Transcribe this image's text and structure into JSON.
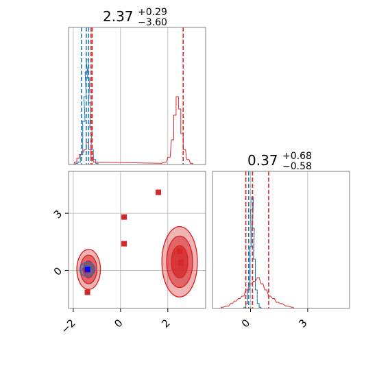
{
  "colors": {
    "red": "#d62728",
    "blue": "#1f77b4",
    "grid": "#b0b0b0",
    "frame": "#808080"
  },
  "chart_data": {
    "type": "corner",
    "grid": true,
    "panels": [
      {
        "id": "hist-x",
        "type": "histogram",
        "title": {
          "value": "2.37",
          "upper": "+0.29",
          "lower": "−3.60"
        },
        "xlim": [
          -2.2,
          3.6
        ],
        "series": [
          {
            "color": "blue",
            "bins": [
              [
                -1.85,
                0.01
              ],
              [
                -1.75,
                0.02
              ],
              [
                -1.65,
                0.08
              ],
              [
                -1.55,
                0.35
              ],
              [
                -1.5,
                0.55
              ],
              [
                -1.45,
                0.75
              ],
              [
                -1.4,
                0.85
              ],
              [
                -1.35,
                0.7
              ],
              [
                -1.3,
                0.5
              ],
              [
                -1.25,
                0.3
              ],
              [
                -1.2,
                0.12
              ],
              [
                -1.1,
                0.04
              ],
              [
                -1.0,
                0.01
              ]
            ]
          },
          {
            "color": "red",
            "bins": [
              [
                -1.9,
                0.02
              ],
              [
                -1.8,
                0.05
              ],
              [
                -1.7,
                0.08
              ],
              [
                -1.6,
                0.1
              ],
              [
                -1.5,
                0.12
              ],
              [
                -1.4,
                0.18
              ],
              [
                -1.3,
                0.12
              ],
              [
                -1.2,
                0.06
              ],
              [
                -1.1,
                0.02
              ],
              [
                1.7,
                0.01
              ],
              [
                1.9,
                0.02
              ],
              [
                2.05,
                0.06
              ],
              [
                2.2,
                0.2
              ],
              [
                2.3,
                0.4
              ],
              [
                2.4,
                0.55
              ],
              [
                2.5,
                0.45
              ],
              [
                2.6,
                0.25
              ],
              [
                2.7,
                0.12
              ],
              [
                2.85,
                0.04
              ],
              [
                3.0,
                0.01
              ]
            ]
          }
        ],
        "vlines": [
          {
            "color": "blue",
            "x": [
              -1.65,
              -1.45,
              -1.35
            ]
          },
          {
            "color": "red",
            "x": [
              -1.25,
              -1.2,
              2.65
            ]
          }
        ]
      },
      {
        "id": "scatter-xy",
        "type": "contour-scatter",
        "xlim": [
          -2.2,
          3.6
        ],
        "ylim": [
          -2.0,
          5.2
        ],
        "xticks": [
          "−2",
          "0",
          "2"
        ],
        "xtick_values": [
          -2,
          0,
          2
        ],
        "yticks": [
          "0",
          "3"
        ],
        "ytick_values": [
          0,
          3
        ],
        "red_markers": [
          [
            0.15,
            2.8
          ],
          [
            0.15,
            1.4
          ],
          [
            1.6,
            4.1
          ],
          [
            2.5,
            1.0
          ],
          [
            2.55,
            0.4
          ],
          [
            -1.4,
            -1.15
          ],
          [
            -1.45,
            0.0
          ]
        ],
        "blue_markers": [
          [
            -1.4,
            0.05
          ]
        ],
        "contours": [
          {
            "color": "red",
            "cx": -1.35,
            "cy": 0.05,
            "rx": [
              0.5,
              0.35,
              0.22
            ],
            "ry": [
              1.05,
              0.75,
              0.45
            ]
          },
          {
            "color": "red",
            "cx": 2.5,
            "cy": 0.45,
            "rx": [
              0.75,
              0.55,
              0.35
            ],
            "ry": [
              1.85,
              1.35,
              0.85
            ]
          },
          {
            "color": "blue",
            "cx": -1.4,
            "cy": 0.05,
            "rx": [
              0.32,
              0.2
            ],
            "ry": [
              0.38,
              0.22
            ]
          }
        ]
      },
      {
        "id": "hist-y",
        "type": "histogram",
        "title": {
          "value": "0.37",
          "upper": "+0.68",
          "lower": "−0.58"
        },
        "xlim": [
          -2.0,
          5.2
        ],
        "xticks": [
          "0",
          "3"
        ],
        "xtick_values": [
          0,
          3
        ],
        "series": [
          {
            "color": "blue",
            "bins": [
              [
                -0.3,
                0.01
              ],
              [
                -0.2,
                0.04
              ],
              [
                -0.1,
                0.15
              ],
              [
                0.0,
                0.5
              ],
              [
                0.05,
                0.8
              ],
              [
                0.1,
                0.9
              ],
              [
                0.15,
                0.65
              ],
              [
                0.2,
                0.4
              ],
              [
                0.3,
                0.15
              ],
              [
                0.4,
                0.04
              ],
              [
                0.5,
                0.01
              ]
            ]
          },
          {
            "color": "red",
            "bins": [
              [
                -1.5,
                0.01
              ],
              [
                -1.2,
                0.02
              ],
              [
                -1.0,
                0.04
              ],
              [
                -0.8,
                0.06
              ],
              [
                -0.6,
                0.08
              ],
              [
                -0.4,
                0.1
              ],
              [
                -0.2,
                0.15
              ],
              [
                0.0,
                0.2
              ],
              [
                0.2,
                0.22
              ],
              [
                0.4,
                0.25
              ],
              [
                0.6,
                0.2
              ],
              [
                0.8,
                0.15
              ],
              [
                1.0,
                0.1
              ],
              [
                1.2,
                0.08
              ],
              [
                1.4,
                0.05
              ],
              [
                1.6,
                0.04
              ],
              [
                1.9,
                0.02
              ],
              [
                2.2,
                0.01
              ]
            ]
          }
        ],
        "vlines": [
          {
            "color": "blue",
            "x": [
              -0.1,
              0.1
            ]
          },
          {
            "color": "red",
            "x": [
              -0.25,
              0.1,
              0.95
            ]
          }
        ]
      }
    ]
  }
}
